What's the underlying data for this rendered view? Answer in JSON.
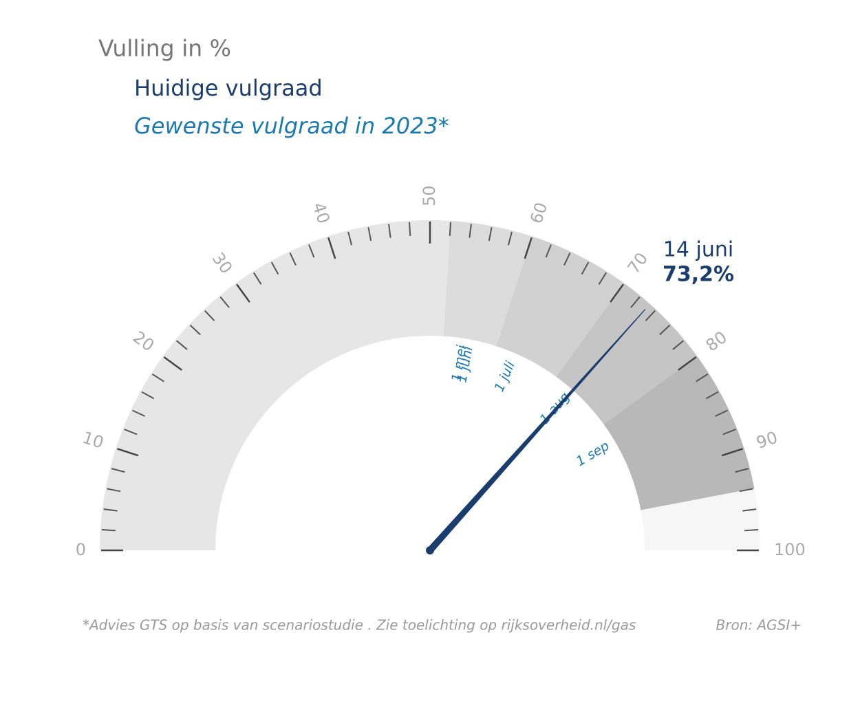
{
  "chart_data": {
    "type": "gauge",
    "title": "Vulling in %",
    "legend": [
      {
        "name": "Huidige vulgraad",
        "color": "#1b3d6d"
      },
      {
        "name": "Gewenste vulgraad in 2023*",
        "color": "#1a7ab0"
      }
    ],
    "value": 73.2,
    "value_label": "73,2%",
    "date": "14 juni",
    "needle_color": "#1b3d6d",
    "range": [
      0,
      100
    ],
    "ticks": [
      0,
      10,
      20,
      30,
      40,
      50,
      60,
      70,
      80,
      90,
      100
    ],
    "minor_ticks": [
      2,
      4,
      6,
      8,
      12,
      14,
      16,
      18,
      22,
      24,
      26,
      28,
      32,
      34,
      36,
      38,
      42,
      44,
      46,
      48,
      52,
      54,
      56,
      58,
      62,
      64,
      66,
      68,
      72,
      74,
      76,
      78,
      82,
      84,
      86,
      88,
      92,
      94,
      96,
      98
    ],
    "bands": [
      {
        "to": 52,
        "color": "#e6e6e6"
      },
      {
        "to": 60,
        "color": "#dcdcdc"
      },
      {
        "to": 70,
        "color": "#d1d1d1"
      },
      {
        "to": 80,
        "color": "#c5c5c5"
      },
      {
        "to": 94,
        "color": "#b8b8b8"
      },
      {
        "to": 100,
        "color": "#f6f6f6"
      }
    ],
    "targets": [
      {
        "label": "1 mei",
        "value": 52
      },
      {
        "label": "1 juni",
        "value": 53
      },
      {
        "label": "1 juli",
        "value": 60
      },
      {
        "label": "1 aug",
        "value": 70
      },
      {
        "label": "1 sep",
        "value": 80
      }
    ],
    "footnote": "*Advies GTS op basis van scenariostudie . Zie toelichting op rijksoverheid.nl/gas",
    "source": "Bron: AGSI+"
  }
}
